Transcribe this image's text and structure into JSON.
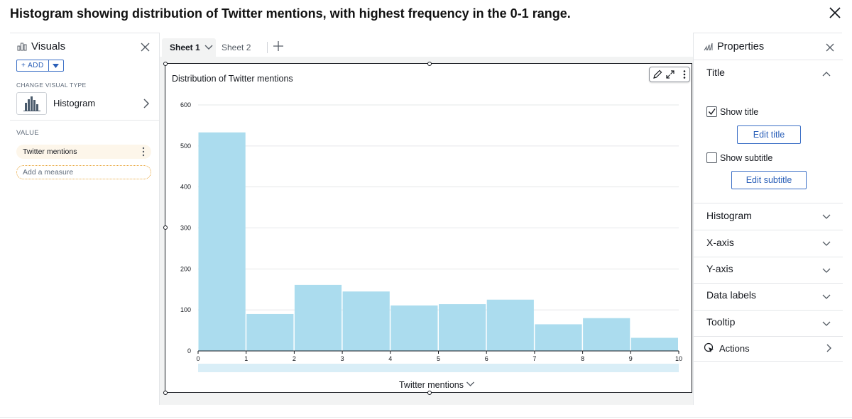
{
  "header": {
    "title": "Histogram showing distribution of Twitter mentions, with highest frequency in the 0-1 range."
  },
  "left_panel": {
    "title": "Visuals",
    "add_label": "+ ADD",
    "change_visual_type_label": "CHANGE VISUAL TYPE",
    "visual_type": "Histogram",
    "value_label": "VALUE",
    "field": "Twitter mentions",
    "add_measure_placeholder": "Add a measure"
  },
  "tabs": [
    {
      "label": "Sheet 1",
      "active": true
    },
    {
      "label": "Sheet 2",
      "active": false
    }
  ],
  "visual": {
    "title": "Distribution of Twitter mentions"
  },
  "chart_data": {
    "type": "bar",
    "title": "Distribution of Twitter mentions",
    "xlabel": "Twitter mentions",
    "ylabel": "",
    "bin_edges": [
      0,
      1,
      2,
      3,
      4,
      5,
      6,
      7,
      8,
      9,
      10
    ],
    "x_ticks": [
      "0",
      "1",
      "2",
      "3",
      "4",
      "5",
      "6",
      "7",
      "8",
      "9",
      "10"
    ],
    "values": [
      533,
      90,
      161,
      145,
      111,
      114,
      125,
      65,
      80,
      32
    ],
    "y_ticks": [
      "0",
      "100",
      "200",
      "300",
      "400",
      "500",
      "600"
    ],
    "ylim": [
      0,
      600
    ],
    "grid": true,
    "bar_color": "#abdcee"
  },
  "right_panel": {
    "title": "Properties",
    "title_section": "Title",
    "show_title_label": "Show title",
    "show_title_checked": true,
    "edit_title_label": "Edit title",
    "show_subtitle_label": "Show subtitle",
    "show_subtitle_checked": false,
    "edit_subtitle_label": "Edit subtitle",
    "sections": [
      "Histogram",
      "X-axis",
      "Y-axis",
      "Data labels",
      "Tooltip"
    ],
    "actions_label": "Actions"
  },
  "colors": {
    "accent": "#2a5fb8",
    "chip_bg": "#fdf6ea",
    "chip_dashed": "#e9a53a",
    "bar": "#abdcee"
  }
}
